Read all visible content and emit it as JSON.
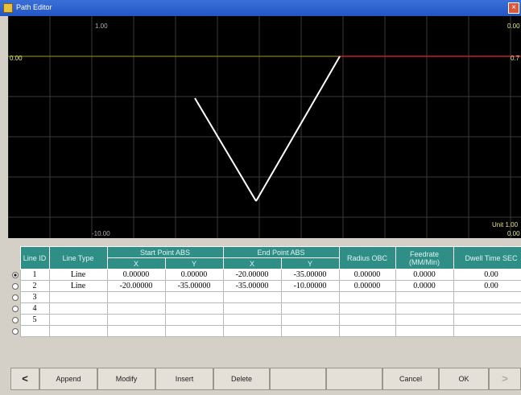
{
  "window": {
    "title": "Path Editor"
  },
  "plot": {
    "labels": {
      "top_center": "1.00",
      "top_right": "0.00",
      "left_mid": "0.00",
      "right_mid": "0.7",
      "bottom_center": "-10.00",
      "bottom_right_1": "Unit 1.00",
      "bottom_right_2": "0.00"
    }
  },
  "table": {
    "headers": {
      "line_id": "Line ID",
      "line_type": "Line Type",
      "start_point": "Start Point ABS",
      "end_point": "End Point ABS",
      "x": "X",
      "y": "Y",
      "radius": "Radius OBC",
      "feedrate": "Feedrate (MM/Min)",
      "dwell": "Dwell Time SEC"
    },
    "rows": [
      {
        "id": "1",
        "type": "Line",
        "sx": "0.00000",
        "sy": "0.00000",
        "ex": "-20.00000",
        "ey": "-35.00000",
        "r": "0.00000",
        "f": "0.0000",
        "d": "0.00",
        "selected": true
      },
      {
        "id": "2",
        "type": "Line",
        "sx": "-20.00000",
        "sy": "-35.00000",
        "ex": "-35.00000",
        "ey": "-10.00000",
        "r": "0.00000",
        "f": "0.0000",
        "d": "0.00",
        "selected": false
      },
      {
        "id": "3",
        "type": "",
        "sx": "",
        "sy": "",
        "ex": "",
        "ey": "",
        "r": "",
        "f": "",
        "d": "",
        "selected": false
      },
      {
        "id": "4",
        "type": "",
        "sx": "",
        "sy": "",
        "ex": "",
        "ey": "",
        "r": "",
        "f": "",
        "d": "",
        "selected": false
      },
      {
        "id": "5",
        "type": "",
        "sx": "",
        "sy": "",
        "ex": "",
        "ey": "",
        "r": "",
        "f": "",
        "d": "",
        "selected": false
      },
      {
        "id": "",
        "type": "",
        "sx": "",
        "sy": "",
        "ex": "",
        "ey": "",
        "r": "",
        "f": "",
        "d": "",
        "selected": false
      }
    ]
  },
  "buttons": {
    "prev": "<",
    "append": "Append",
    "modify": "Modify",
    "insert": "Insert",
    "delete": "Delete",
    "cancel": "Cancel",
    "ok": "OK",
    "next": ">"
  }
}
